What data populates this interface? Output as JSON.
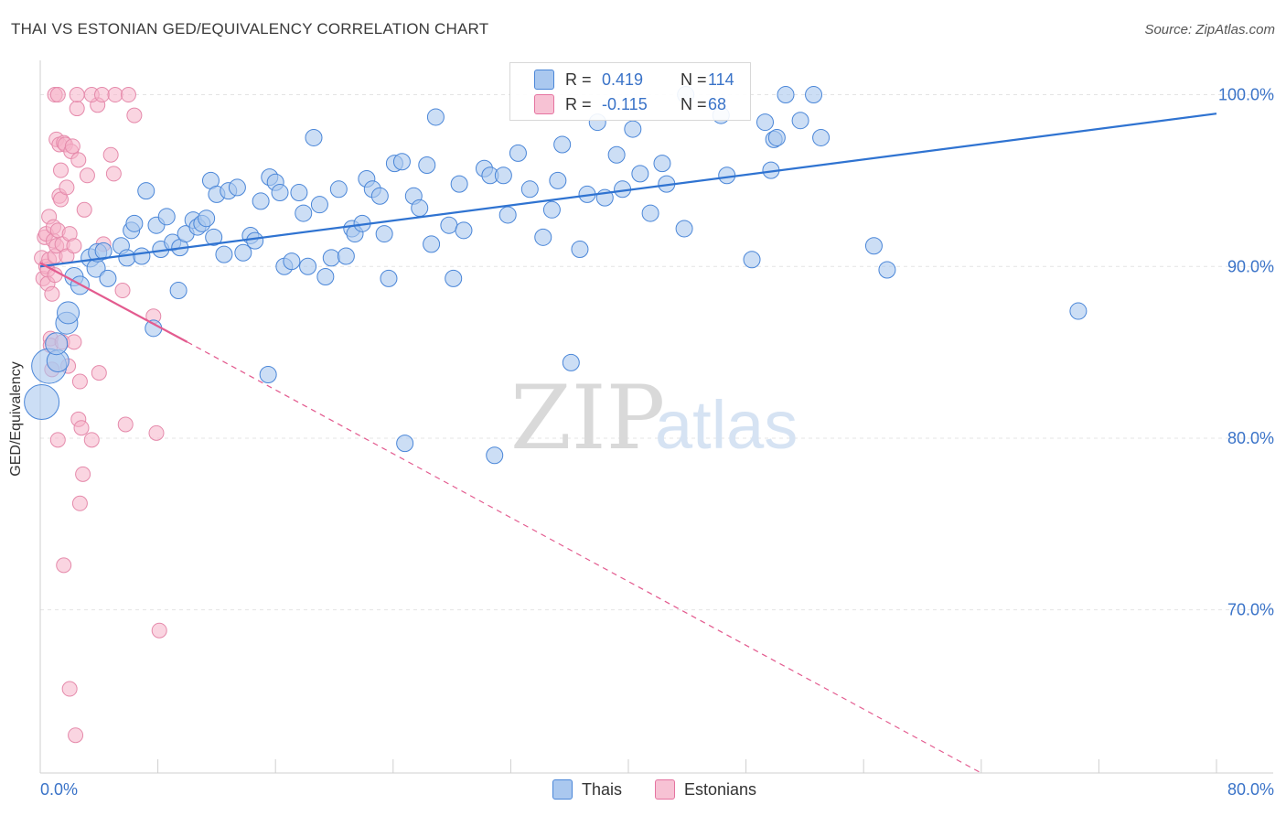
{
  "header": {
    "title": "THAI VS ESTONIAN GED/EQUIVALENCY CORRELATION CHART",
    "source": "Source: ZipAtlas.com"
  },
  "watermark": {
    "zip": "ZIP",
    "atlas": "atlas"
  },
  "legend": {
    "rows": [
      {
        "r_label": "R =",
        "r_value": "0.419",
        "n_label": "N =",
        "n_value": "114",
        "color": "#4a86d8",
        "fill": "#aac8ef"
      },
      {
        "r_label": "R =",
        "r_value": "-0.115",
        "n_label": "N =",
        "n_value": "68",
        "color": "#e573a0",
        "fill": "#f7b8cd"
      }
    ],
    "series_names": [
      "Thais",
      "Estonians"
    ]
  },
  "colors": {
    "blue": "#2f73d1",
    "blue_fill": "#aac8ef",
    "pink": "#e35b8f",
    "pink_fill": "#f5b3c9",
    "value_text": "#3a73c8",
    "grid": "#e4e4e4"
  },
  "chart_data": {
    "type": "scatter",
    "title": "THAI VS ESTONIAN GED/EQUIVALENCY CORRELATION CHART",
    "ylabel": "GED/Equivalency",
    "xlabel": "",
    "xlim": [
      0,
      80
    ],
    "ylim": [
      60.5,
      102
    ],
    "x_tick_labels": [
      "0.0%",
      "80.0%"
    ],
    "y_ticks": [
      70,
      80,
      90,
      100
    ],
    "y_tick_labels": [
      "70.0%",
      "80.0%",
      "90.0%",
      "100.0%"
    ],
    "grid": true,
    "legend_position": "top-center",
    "series": [
      {
        "name": "Thais",
        "points": [
          [
            0.1,
            82.1
          ],
          [
            0.6,
            84.2
          ],
          [
            1.2,
            84.5
          ],
          [
            1.1,
            85.5
          ],
          [
            1.8,
            86.7
          ],
          [
            1.9,
            87.3
          ],
          [
            2.3,
            89.4
          ],
          [
            2.7,
            88.9
          ],
          [
            3.4,
            90.5
          ],
          [
            3.8,
            89.9
          ],
          [
            3.9,
            90.8
          ],
          [
            4.3,
            90.9
          ],
          [
            4.6,
            89.3
          ],
          [
            5.5,
            91.2
          ],
          [
            5.9,
            90.5
          ],
          [
            6.2,
            92.1
          ],
          [
            6.4,
            92.5
          ],
          [
            6.9,
            90.6
          ],
          [
            7.2,
            94.4
          ],
          [
            7.7,
            86.4
          ],
          [
            7.9,
            92.4
          ],
          [
            8.2,
            91.0
          ],
          [
            8.6,
            92.9
          ],
          [
            9.0,
            91.4
          ],
          [
            9.4,
            88.6
          ],
          [
            9.5,
            91.1
          ],
          [
            9.9,
            91.9
          ],
          [
            10.4,
            92.7
          ],
          [
            10.7,
            92.3
          ],
          [
            11.0,
            92.5
          ],
          [
            11.3,
            92.8
          ],
          [
            11.6,
            95.0
          ],
          [
            11.8,
            91.7
          ],
          [
            12.0,
            94.2
          ],
          [
            12.5,
            90.7
          ],
          [
            12.8,
            94.4
          ],
          [
            13.4,
            94.6
          ],
          [
            13.8,
            90.8
          ],
          [
            14.3,
            91.8
          ],
          [
            14.6,
            91.5
          ],
          [
            15.0,
            93.8
          ],
          [
            15.5,
            83.7
          ],
          [
            15.6,
            95.2
          ],
          [
            16.0,
            94.9
          ],
          [
            16.3,
            94.3
          ],
          [
            16.6,
            90.0
          ],
          [
            17.1,
            90.3
          ],
          [
            17.6,
            94.3
          ],
          [
            17.9,
            93.1
          ],
          [
            18.2,
            90.0
          ],
          [
            18.6,
            97.5
          ],
          [
            19.0,
            93.6
          ],
          [
            19.4,
            89.4
          ],
          [
            19.8,
            90.5
          ],
          [
            20.3,
            94.5
          ],
          [
            20.8,
            90.6
          ],
          [
            21.2,
            92.2
          ],
          [
            21.4,
            91.9
          ],
          [
            21.9,
            92.5
          ],
          [
            22.2,
            95.1
          ],
          [
            22.6,
            94.5
          ],
          [
            23.1,
            94.1
          ],
          [
            23.4,
            91.9
          ],
          [
            23.7,
            89.3
          ],
          [
            24.1,
            96.0
          ],
          [
            24.6,
            96.1
          ],
          [
            24.8,
            79.7
          ],
          [
            25.4,
            94.1
          ],
          [
            25.8,
            93.4
          ],
          [
            26.3,
            95.9
          ],
          [
            26.6,
            91.3
          ],
          [
            26.9,
            98.7
          ],
          [
            27.8,
            92.4
          ],
          [
            28.1,
            89.3
          ],
          [
            28.5,
            94.8
          ],
          [
            28.8,
            92.1
          ],
          [
            30.2,
            95.7
          ],
          [
            30.6,
            95.3
          ],
          [
            30.9,
            79.0
          ],
          [
            31.5,
            95.3
          ],
          [
            31.8,
            93.0
          ],
          [
            32.5,
            96.6
          ],
          [
            33.3,
            94.5
          ],
          [
            34.2,
            91.7
          ],
          [
            34.8,
            93.3
          ],
          [
            35.2,
            95.0
          ],
          [
            35.5,
            97.1
          ],
          [
            36.1,
            84.4
          ],
          [
            36.7,
            91.0
          ],
          [
            37.2,
            94.2
          ],
          [
            37.9,
            98.4
          ],
          [
            38.4,
            94.0
          ],
          [
            39.2,
            96.5
          ],
          [
            39.6,
            94.5
          ],
          [
            40.3,
            98.0
          ],
          [
            40.8,
            95.4
          ],
          [
            41.5,
            93.1
          ],
          [
            42.3,
            96.0
          ],
          [
            42.6,
            94.8
          ],
          [
            43.9,
            100.0
          ],
          [
            43.8,
            92.2
          ],
          [
            46.7,
            95.3
          ],
          [
            46.3,
            98.8
          ],
          [
            48.4,
            90.4
          ],
          [
            49.3,
            98.4
          ],
          [
            49.7,
            95.6
          ],
          [
            49.9,
            97.4
          ],
          [
            50.1,
            97.5
          ],
          [
            50.7,
            100.0
          ],
          [
            51.7,
            98.5
          ],
          [
            52.6,
            100.0
          ],
          [
            53.1,
            97.5
          ],
          [
            56.7,
            91.2
          ],
          [
            57.6,
            89.8
          ],
          [
            70.6,
            87.4
          ]
        ],
        "sizes_note": "point radii vary; largest markers near x=0"
      },
      {
        "name": "Estonians",
        "points": [
          [
            0.1,
            90.5
          ],
          [
            0.2,
            89.3
          ],
          [
            0.3,
            91.7
          ],
          [
            0.4,
            91.9
          ],
          [
            0.4,
            90.0
          ],
          [
            0.5,
            89.8
          ],
          [
            0.5,
            89.0
          ],
          [
            0.6,
            92.9
          ],
          [
            0.6,
            90.4
          ],
          [
            0.7,
            85.8
          ],
          [
            0.7,
            85.4
          ],
          [
            0.8,
            88.4
          ],
          [
            0.8,
            84.0
          ],
          [
            0.9,
            91.5
          ],
          [
            0.9,
            92.3
          ],
          [
            1.0,
            90.6
          ],
          [
            1.0,
            89.5
          ],
          [
            1.1,
            97.4
          ],
          [
            1.1,
            91.2
          ],
          [
            1.2,
            79.9
          ],
          [
            1.2,
            92.1
          ],
          [
            1.3,
            94.1
          ],
          [
            1.3,
            97.1
          ],
          [
            1.4,
            95.6
          ],
          [
            1.4,
            93.9
          ],
          [
            1.5,
            91.3
          ],
          [
            1.5,
            85.6
          ],
          [
            1.6,
            72.6
          ],
          [
            1.6,
            97.2
          ],
          [
            1.7,
            97.1
          ],
          [
            1.8,
            94.6
          ],
          [
            1.8,
            90.6
          ],
          [
            1.9,
            84.2
          ],
          [
            2.0,
            91.9
          ],
          [
            2.0,
            65.4
          ],
          [
            2.1,
            96.7
          ],
          [
            2.2,
            97.0
          ],
          [
            2.3,
            91.2
          ],
          [
            2.3,
            85.6
          ],
          [
            2.4,
            62.7
          ],
          [
            2.5,
            99.2
          ],
          [
            2.6,
            96.2
          ],
          [
            2.6,
            81.1
          ],
          [
            2.7,
            83.3
          ],
          [
            2.7,
            76.2
          ],
          [
            2.8,
            80.6
          ],
          [
            2.9,
            77.9
          ],
          [
            3.0,
            93.3
          ],
          [
            3.2,
            95.3
          ],
          [
            3.5,
            79.9
          ],
          [
            3.9,
            99.4
          ],
          [
            4.0,
            83.8
          ],
          [
            4.3,
            91.3
          ],
          [
            5.0,
            95.4
          ],
          [
            5.6,
            88.6
          ],
          [
            5.8,
            80.8
          ],
          [
            6.4,
            98.8
          ],
          [
            7.7,
            87.1
          ],
          [
            7.9,
            80.3
          ],
          [
            8.1,
            68.8
          ],
          [
            1.0,
            100.0
          ],
          [
            1.2,
            100.0
          ],
          [
            2.5,
            100.0
          ],
          [
            3.5,
            100.0
          ],
          [
            4.2,
            100.0
          ],
          [
            5.1,
            100.0
          ],
          [
            6.0,
            100.0
          ],
          [
            4.8,
            96.5
          ]
        ]
      }
    ],
    "trend_lines": [
      {
        "series": "Thais",
        "x": [
          0,
          80
        ],
        "y": [
          90.0,
          98.9
        ],
        "style": "solid"
      },
      {
        "series": "Estonians",
        "x": [
          0,
          10
        ],
        "y": [
          90.2,
          85.6
        ],
        "style": "solid"
      },
      {
        "series": "Estonians",
        "x": [
          10,
          64
        ],
        "y": [
          85.6,
          60.5
        ],
        "style": "dashed"
      }
    ]
  }
}
